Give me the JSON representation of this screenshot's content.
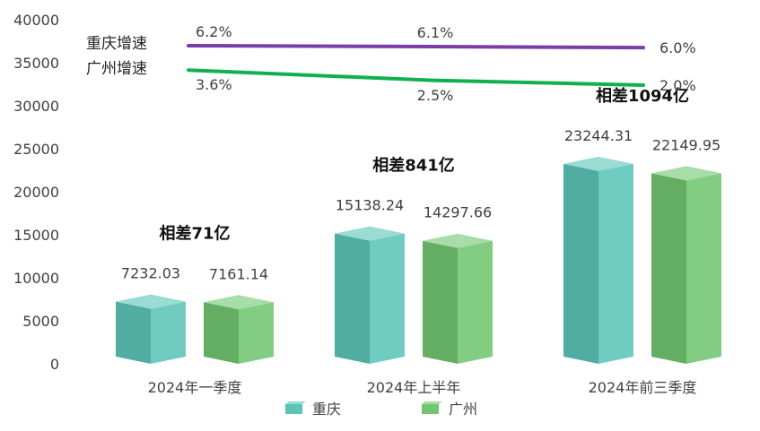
{
  "chart_data": {
    "type": "bar",
    "categories": [
      "2024年一季度",
      "2024年上半年",
      "2024年前三季度"
    ],
    "ylim": [
      0,
      40000
    ],
    "yticks": [
      0,
      5000,
      10000,
      15000,
      20000,
      25000,
      30000,
      35000,
      40000
    ],
    "series": [
      {
        "name": "重庆",
        "values": [
          7232.03,
          15138.24,
          23244.31
        ],
        "value_labels": [
          "7232.03",
          "15138.24",
          "23244.31"
        ],
        "color": "#5cc5b8"
      },
      {
        "name": "广州",
        "values": [
          7161.14,
          14297.66,
          22149.95
        ],
        "value_labels": [
          "7161.14",
          "14297.66",
          "22149.95"
        ],
        "color": "#72c672"
      }
    ],
    "differences": [
      "相差71亿",
      "相差841亿",
      "相差1094亿"
    ],
    "growth_lines": [
      {
        "name": "重庆增速",
        "values": [
          6.2,
          6.1,
          6.0
        ],
        "labels": [
          "6.2%",
          "6.1%",
          "6.0%"
        ],
        "color": "#7a3ea8"
      },
      {
        "name": "广州增速",
        "values": [
          3.6,
          2.5,
          2.0
        ],
        "labels": [
          "3.6%",
          "2.5%",
          "2.0%"
        ],
        "color": "#10b050"
      }
    ],
    "legend": {
      "position": "bottom",
      "items": [
        "重庆",
        "广州"
      ]
    },
    "grid": false
  }
}
